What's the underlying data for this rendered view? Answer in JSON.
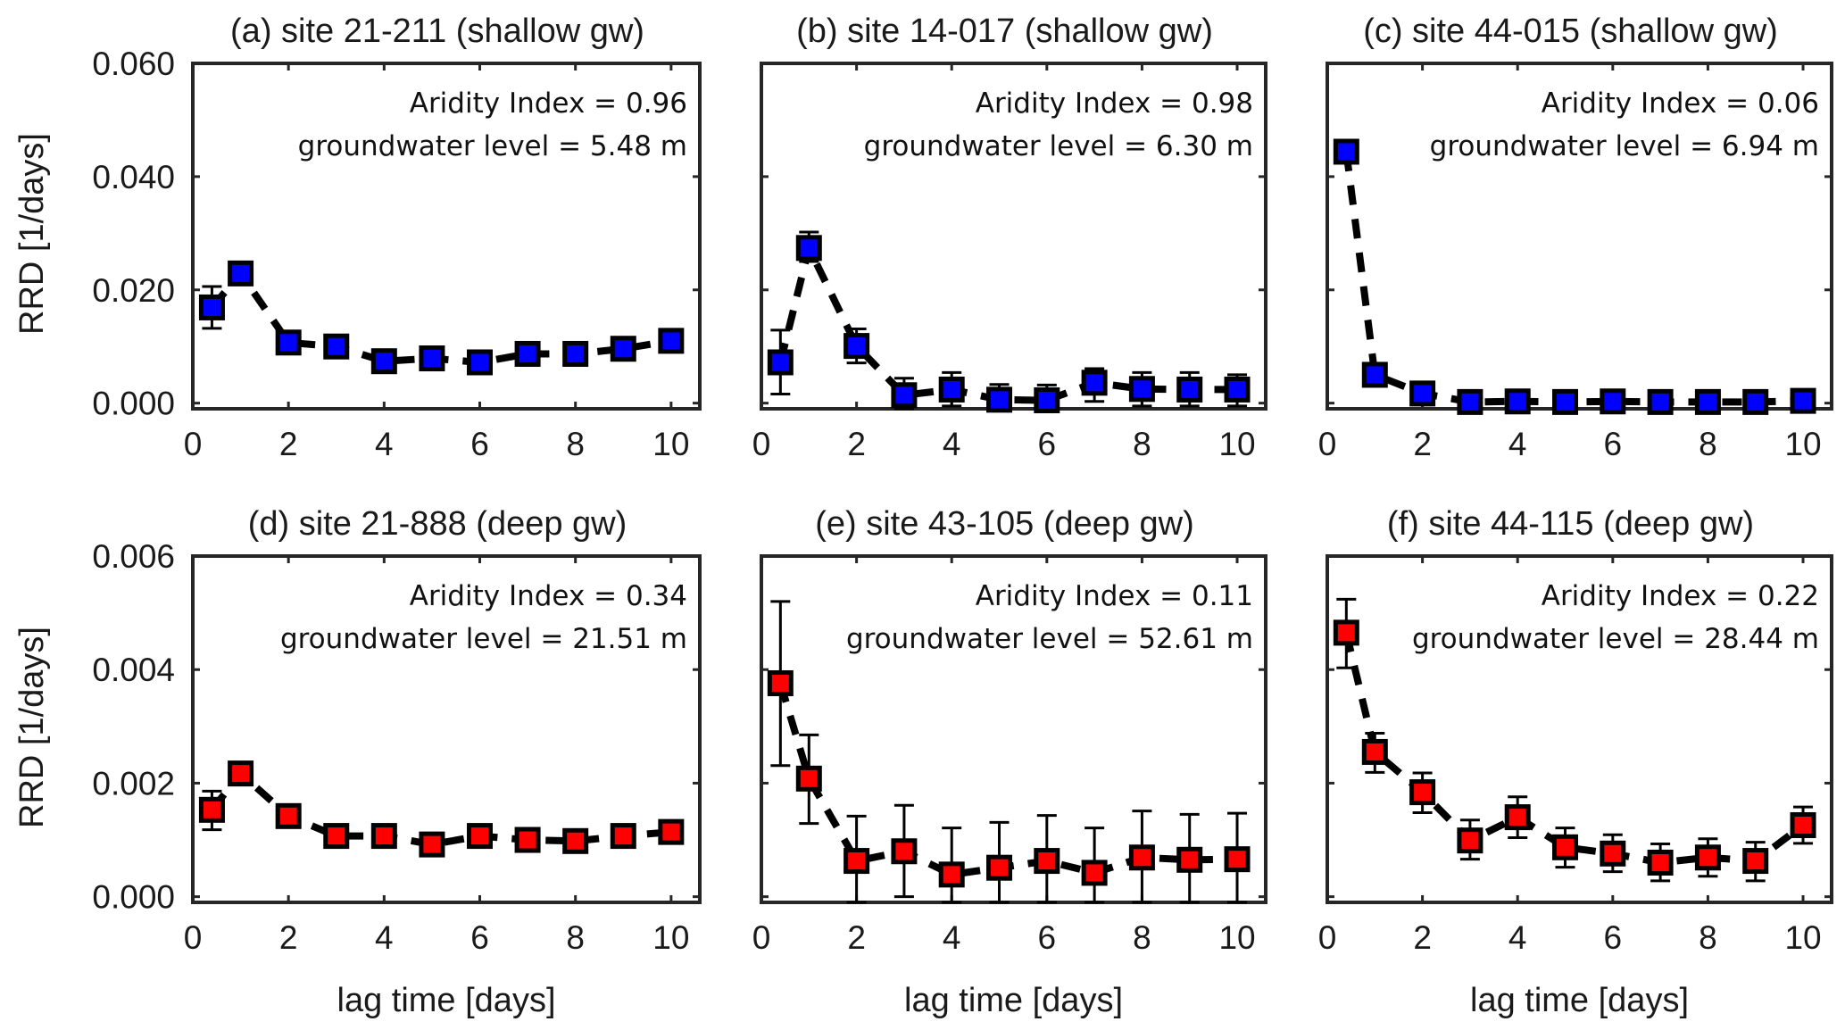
{
  "figure": {
    "ylabel": "RRD [1/days]",
    "xlabel": "lag time [days]"
  },
  "chart_data": [
    {
      "type": "scatter",
      "panel": "(a)",
      "title": "(a) site 21-211 (shallow gw)",
      "annotations": [
        "Aridity Index = 0.96",
        "groundwater level = 5.48 m"
      ],
      "xlabel": "",
      "ylabel": "RRD [1/days]",
      "xlim": [
        0,
        10.6
      ],
      "ylim": [
        -0.001,
        0.06
      ],
      "xticks": [
        0,
        2,
        4,
        6,
        8,
        10
      ],
      "yticks": [
        0.0,
        0.02,
        0.04,
        0.06
      ],
      "ytick_labels": [
        "0.000",
        "0.020",
        "0.040",
        "0.060"
      ],
      "marker_color": "#0000ff",
      "line_style": "dashed",
      "series": [
        {
          "name": "site 21-211",
          "x": [
            0.4,
            1,
            2,
            3,
            4,
            5,
            6,
            7,
            8,
            9,
            10
          ],
          "y": [
            0.0169,
            0.0229,
            0.0107,
            0.01,
            0.0074,
            0.0079,
            0.0072,
            0.0087,
            0.0087,
            0.0096,
            0.011
          ],
          "err_low": [
            0.0132,
            0.0222,
            0.01,
            0.0093,
            0.0068,
            0.0073,
            0.0066,
            0.0081,
            0.0081,
            0.009,
            0.0104
          ],
          "err_high": [
            0.0206,
            0.0236,
            0.0114,
            0.0107,
            0.008,
            0.0085,
            0.0078,
            0.0093,
            0.0093,
            0.0102,
            0.0116
          ]
        }
      ]
    },
    {
      "type": "scatter",
      "panel": "(b)",
      "title": "(b) site 14-017 (shallow gw)",
      "annotations": [
        "Aridity Index = 0.98",
        "groundwater level = 6.30 m"
      ],
      "xlabel": "",
      "ylabel": "",
      "xlim": [
        0,
        10.6
      ],
      "ylim": [
        -0.001,
        0.06
      ],
      "xticks": [
        0,
        2,
        4,
        6,
        8,
        10
      ],
      "yticks": [
        0.0,
        0.02,
        0.04,
        0.06
      ],
      "ytick_labels": [],
      "marker_color": "#0000ff",
      "line_style": "dashed",
      "series": [
        {
          "name": "site 14-017",
          "x": [
            0.4,
            1,
            2,
            3,
            4,
            5,
            6,
            7,
            8,
            9,
            10
          ],
          "y": [
            0.0072,
            0.0274,
            0.0101,
            0.0014,
            0.0024,
            0.0006,
            0.0005,
            0.0036,
            0.0025,
            0.0024,
            0.0024
          ],
          "err_low": [
            0.0016,
            0.025,
            0.0071,
            -0.001,
            -0.0005,
            -0.0015,
            -0.0015,
            0.0003,
            -0.0005,
            -0.0005,
            -0.0005
          ],
          "err_high": [
            0.0129,
            0.0302,
            0.0131,
            0.0044,
            0.0054,
            0.0033,
            0.0032,
            0.0061,
            0.0054,
            0.0054,
            0.005
          ]
        }
      ]
    },
    {
      "type": "scatter",
      "panel": "(c)",
      "title": "(c) site 44-015 (shallow gw)",
      "annotations": [
        "Aridity Index = 0.06",
        "groundwater level = 6.94 m"
      ],
      "xlabel": "",
      "ylabel": "",
      "xlim": [
        0,
        10.6
      ],
      "ylim": [
        -0.001,
        0.06
      ],
      "xticks": [
        0,
        2,
        4,
        6,
        8,
        10
      ],
      "yticks": [
        0.0,
        0.02,
        0.04,
        0.06
      ],
      "ytick_labels": [],
      "marker_color": "#0000ff",
      "line_style": "dashed",
      "series": [
        {
          "name": "site 44-015",
          "x": [
            0.4,
            1,
            2,
            3,
            4,
            5,
            6,
            7,
            8,
            9,
            10
          ],
          "y": [
            0.0444,
            0.005,
            0.0017,
            0.0002,
            0.0003,
            0.0002,
            0.0003,
            0.0002,
            0.0002,
            0.0002,
            0.0004
          ],
          "err_low": [
            0.0441,
            0.0047,
            0.0014,
            0.0,
            0.0001,
            0.0,
            0.0001,
            0.0,
            0.0,
            0.0,
            0.0002
          ],
          "err_high": [
            0.0447,
            0.0053,
            0.002,
            0.0004,
            0.0005,
            0.0004,
            0.0005,
            0.0004,
            0.0004,
            0.0004,
            0.0006
          ]
        }
      ]
    },
    {
      "type": "scatter",
      "panel": "(d)",
      "title": "(d)  site 21-888 (deep gw)",
      "annotations": [
        "Aridity Index = 0.34",
        "groundwater level = 21.51 m"
      ],
      "xlabel": "lag time [days]",
      "ylabel": "RRD [1/days]",
      "xlim": [
        0,
        10.6
      ],
      "ylim": [
        -0.0001,
        0.006
      ],
      "xticks": [
        0,
        2,
        4,
        6,
        8,
        10
      ],
      "yticks": [
        0.0,
        0.002,
        0.004,
        0.006
      ],
      "ytick_labels": [
        "0.000",
        "0.002",
        "0.004",
        "0.006"
      ],
      "marker_color": "#ff0000",
      "line_style": "dashed",
      "series": [
        {
          "name": "site 21-888",
          "x": [
            0.4,
            1,
            2,
            3,
            4,
            5,
            6,
            7,
            8,
            9,
            10
          ],
          "y": [
            0.00153,
            0.00217,
            0.00142,
            0.00107,
            0.00107,
            0.00092,
            0.00107,
            0.001,
            0.00098,
            0.00107,
            0.00114
          ],
          "err_low": [
            0.00118,
            0.00211,
            0.00136,
            0.00101,
            0.00101,
            0.00086,
            0.00101,
            0.00094,
            0.00092,
            0.00101,
            0.00108
          ],
          "err_high": [
            0.00186,
            0.00223,
            0.00148,
            0.00113,
            0.00113,
            0.00098,
            0.00113,
            0.00106,
            0.00104,
            0.00113,
            0.0012
          ]
        }
      ]
    },
    {
      "type": "scatter",
      "panel": "(e)",
      "title": "(e)  site 43-105 (deep gw)",
      "annotations": [
        "Aridity Index = 0.11",
        "groundwater level = 52.61 m"
      ],
      "xlabel": "lag time [days]",
      "ylabel": "",
      "xlim": [
        0,
        10.6
      ],
      "ylim": [
        -0.0001,
        0.006
      ],
      "xticks": [
        0,
        2,
        4,
        6,
        8,
        10
      ],
      "yticks": [
        0.0,
        0.002,
        0.004,
        0.006
      ],
      "ytick_labels": [],
      "marker_color": "#ff0000",
      "line_style": "dashed",
      "series": [
        {
          "name": "site 43-105",
          "x": [
            0.4,
            1,
            2,
            3,
            4,
            5,
            6,
            7,
            8,
            9,
            10
          ],
          "y": [
            0.00376,
            0.00208,
            0.00063,
            0.0008,
            0.00039,
            0.00051,
            0.00063,
            0.00042,
            0.00069,
            0.00065,
            0.00066
          ],
          "err_low": [
            0.00231,
            0.00129,
            -0.0001,
            0.0,
            -0.0001,
            -0.0001,
            -0.0001,
            -0.0001,
            -0.0001,
            -0.0001,
            -0.0001
          ],
          "err_high": [
            0.0052,
            0.00285,
            0.00142,
            0.00161,
            0.00121,
            0.00131,
            0.00143,
            0.00121,
            0.00151,
            0.00145,
            0.00147
          ]
        }
      ]
    },
    {
      "type": "scatter",
      "panel": "(f)",
      "title": "(f)  site 44-115 (deep gw)",
      "annotations": [
        "Aridity Index = 0.22",
        "groundwater level = 28.44 m"
      ],
      "xlabel": "lag time [days]",
      "ylabel": "",
      "xlim": [
        0,
        10.6
      ],
      "ylim": [
        -0.0001,
        0.006
      ],
      "xticks": [
        0,
        2,
        4,
        6,
        8,
        10
      ],
      "yticks": [
        0.0,
        0.002,
        0.004,
        0.006
      ],
      "ytick_labels": [],
      "marker_color": "#ff0000",
      "line_style": "dashed",
      "series": [
        {
          "name": "site 44-115",
          "x": [
            0.4,
            1,
            2,
            3,
            4,
            5,
            6,
            7,
            8,
            9,
            10
          ],
          "y": [
            0.00465,
            0.00255,
            0.00184,
            0.00099,
            0.0014,
            0.00087,
            0.00076,
            0.0006,
            0.00069,
            0.00063,
            0.00126
          ],
          "err_low": [
            0.00403,
            0.00219,
            0.00148,
            0.00066,
            0.00104,
            0.00052,
            0.00044,
            0.00028,
            0.00036,
            0.00028,
            0.00094
          ],
          "err_high": [
            0.00524,
            0.00288,
            0.00218,
            0.00135,
            0.00176,
            0.00121,
            0.00109,
            0.00093,
            0.00102,
            0.00096,
            0.00158
          ]
        }
      ]
    }
  ]
}
